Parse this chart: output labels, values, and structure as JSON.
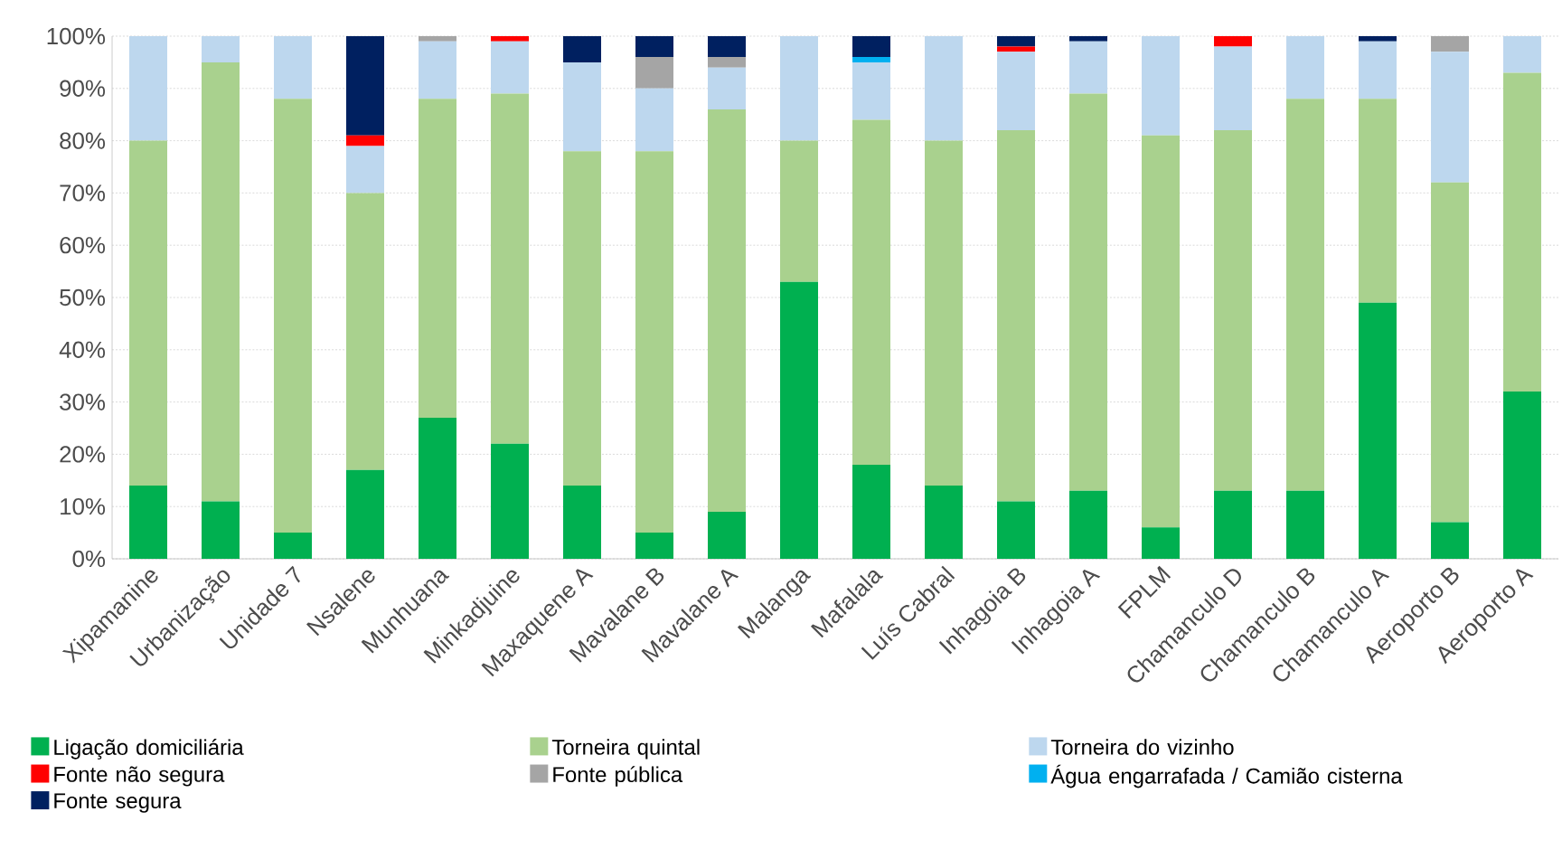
{
  "chart_data": {
    "type": "bar",
    "stacked": true,
    "categories": [
      "Xipamanine",
      "Urbanização",
      "Unidade 7",
      "Nsalene",
      "Munhuana",
      "Minkadjuine",
      "Maxaquene A",
      "Mavalane B",
      "Mavalane A",
      "Malanga",
      "Mafalala",
      "Luís Cabral",
      "Inhagoia B",
      "Inhagoia A",
      "FPLM",
      "Chamanculo D",
      "Chamanculo B",
      "Chamanculo A",
      "Aeroporto B",
      "Aeroporto A"
    ],
    "series": [
      {
        "name": "Ligação domiciliária",
        "color": "#00b050",
        "values": [
          14,
          11,
          5,
          17,
          27,
          22,
          14,
          5,
          9,
          53,
          18,
          14,
          11,
          13,
          6,
          13,
          13,
          49,
          7,
          32
        ]
      },
      {
        "name": "Torneira quintal",
        "color": "#a9d18e",
        "values": [
          66,
          84,
          83,
          53,
          61,
          67,
          64,
          73,
          77,
          27,
          66,
          66,
          71,
          76,
          75,
          69,
          75,
          39,
          65,
          61
        ]
      },
      {
        "name": "Torneira do vizinho",
        "color": "#bdd7ee",
        "values": [
          20,
          5,
          12,
          9,
          11,
          10,
          17,
          12,
          8,
          20,
          11,
          20,
          15,
          10,
          19,
          16,
          12,
          11,
          25,
          7
        ]
      },
      {
        "name": "Fonte não segura",
        "color": "#ff0000",
        "values": [
          0,
          0,
          0,
          2,
          0,
          1,
          0,
          0,
          0,
          0,
          0,
          0,
          1,
          0,
          0,
          2,
          0,
          0,
          0,
          0
        ]
      },
      {
        "name": "Fonte pública",
        "color": "#a5a5a5",
        "values": [
          0,
          0,
          0,
          0,
          1,
          0,
          0,
          6,
          2,
          0,
          0,
          0,
          0,
          0,
          0,
          0,
          0,
          0,
          3,
          0
        ]
      },
      {
        "name": "Água engarrafada / Camião cisterna",
        "color": "#00b0f0",
        "values": [
          0,
          0,
          0,
          0,
          0,
          0,
          0,
          0,
          0,
          0,
          1,
          0,
          0,
          0,
          0,
          0,
          0,
          0,
          0,
          0
        ]
      },
      {
        "name": "Fonte segura",
        "color": "#002060",
        "values": [
          0,
          0,
          0,
          19,
          0,
          0,
          5,
          4,
          4,
          0,
          4,
          0,
          2,
          1,
          0,
          0,
          0,
          1,
          0,
          0
        ]
      }
    ],
    "ylim": [
      0,
      100
    ],
    "yticks": [
      {
        "value": 0,
        "label": "0%"
      },
      {
        "value": 10,
        "label": "10%"
      },
      {
        "value": 20,
        "label": "20%"
      },
      {
        "value": 30,
        "label": "30%"
      },
      {
        "value": 40,
        "label": "40%"
      },
      {
        "value": 50,
        "label": "50%"
      },
      {
        "value": 60,
        "label": "60%"
      },
      {
        "value": 70,
        "label": "70%"
      },
      {
        "value": 80,
        "label": "80%"
      },
      {
        "value": 90,
        "label": "90%"
      },
      {
        "value": 100,
        "label": "100%"
      }
    ],
    "grid": "y",
    "legend": "bottom"
  }
}
